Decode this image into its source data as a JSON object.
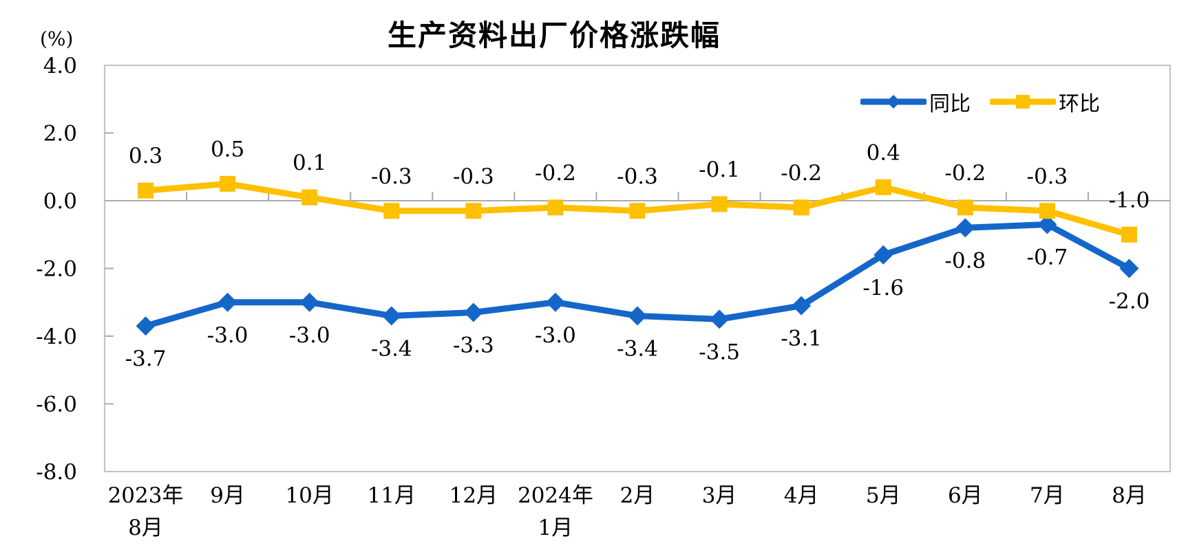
{
  "chart_data": {
    "type": "line",
    "title": "生产资料出厂价格涨跌幅",
    "ylabel": "(%)",
    "ylim": [
      -8.0,
      4.0
    ],
    "ytick_values": [
      4,
      2,
      0,
      -2,
      -4,
      -6,
      -8
    ],
    "ytick_labels": [
      "4.0",
      "2.0",
      "0.0",
      "-2.0",
      "-4.0",
      "-6.0",
      "-8.0"
    ],
    "categories": [
      [
        "2023年",
        "8月"
      ],
      [
        "9月"
      ],
      [
        "10月"
      ],
      [
        "11月"
      ],
      [
        "12月"
      ],
      [
        "2024年",
        "1月"
      ],
      [
        "2月"
      ],
      [
        "3月"
      ],
      [
        "4月"
      ],
      [
        "5月"
      ],
      [
        "6月"
      ],
      [
        "7月"
      ],
      [
        "8月"
      ]
    ],
    "series": [
      {
        "name": "同比",
        "color": "#1566C9",
        "marker": "diamond",
        "label_position": "below",
        "values": [
          -3.7,
          -3.0,
          -3.0,
          -3.4,
          -3.3,
          -3.0,
          -3.4,
          -3.5,
          -3.1,
          -1.6,
          -0.8,
          -0.7,
          -2.0
        ],
        "labels": [
          "-3.7",
          "-3.0",
          "-3.0",
          "-3.4",
          "-3.3",
          "-3.0",
          "-3.4",
          "-3.5",
          "-3.1",
          "-1.6",
          "-0.8",
          "-0.7",
          "-2.0"
        ]
      },
      {
        "name": "环比",
        "color": "#FFC000",
        "marker": "square",
        "label_position": "above",
        "values": [
          0.3,
          0.5,
          0.1,
          -0.3,
          -0.3,
          -0.2,
          -0.3,
          -0.1,
          -0.2,
          0.4,
          -0.2,
          -0.3,
          -1.0
        ],
        "labels": [
          "0.3",
          "0.5",
          "0.1",
          "-0.3",
          "-0.3",
          "-0.2",
          "-0.3",
          "-0.1",
          "-0.2",
          "0.4",
          "-0.2",
          "-0.3",
          "-1.0"
        ]
      }
    ],
    "legend_position": "top-right",
    "grid": "zero-line-only",
    "axis_color": "#A9A9A9",
    "border_color": "#C3C3C3",
    "text_color": "#000000"
  }
}
